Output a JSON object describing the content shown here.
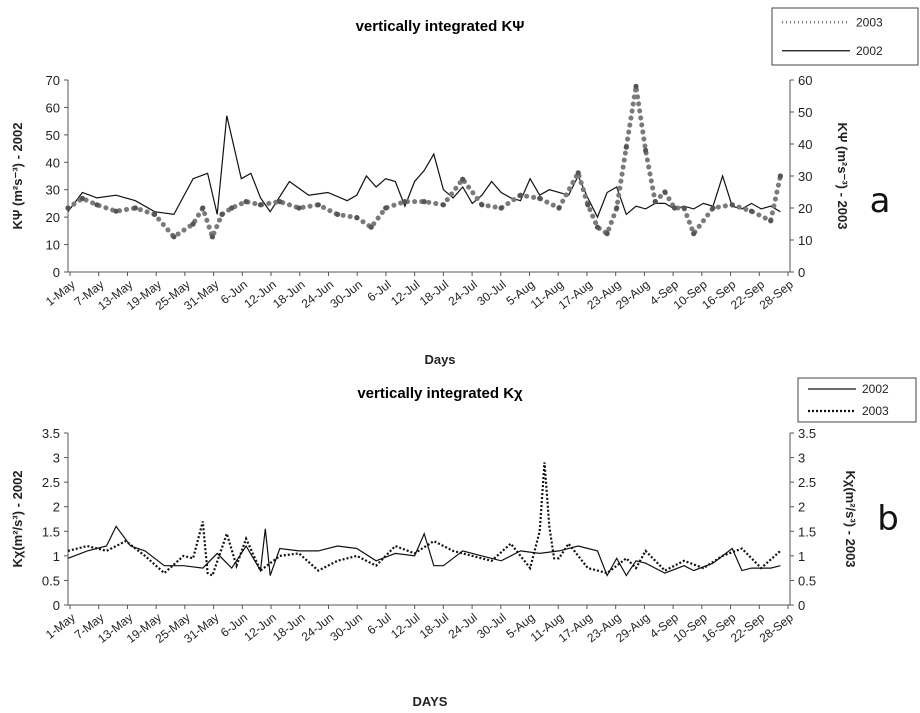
{
  "chart_data": [
    {
      "panel_label": "a",
      "type": "line",
      "title": "vertically integrated KΨ",
      "xlabel": "Days",
      "ylabel_left": "KΨ (m²s⁻³) - 2002",
      "ylabel_right": "KΨ (m²s⁻³) - 2003",
      "ylim_left": [
        0,
        70
      ],
      "ylim_right": [
        0,
        60
      ],
      "yticks_left": [
        "0",
        "10",
        "20",
        "30",
        "40",
        "50",
        "60",
        "70"
      ],
      "yticks_right": [
        "0",
        "10",
        "20",
        "30",
        "40",
        "50",
        "60"
      ],
      "x_tick_labels": [
        "1-May",
        "7-May",
        "13-May",
        "19-May",
        "25-May",
        "31-May",
        "6-Jun",
        "12-Jun",
        "18-Jun",
        "24-Jun",
        "30-Jun",
        "6-Jul",
        "12-Jul",
        "18-Jul",
        "24-Jul",
        "30-Jul",
        "5-Aug",
        "11-Aug",
        "17-Aug",
        "23-Aug",
        "29-Aug",
        "4-Sep",
        "10-Sep",
        "16-Sep",
        "22-Sep",
        "28-Sep"
      ],
      "legend_position": "top-right",
      "series": [
        {
          "name": "2002",
          "style": "solid",
          "axis": "left",
          "x": [
            0,
            3,
            6,
            10,
            14,
            18,
            22,
            26,
            29,
            31,
            33,
            36,
            38,
            40,
            42,
            46,
            50,
            54,
            58,
            60,
            62,
            64,
            66,
            68,
            70,
            72,
            74,
            76,
            78,
            80,
            82,
            84,
            86,
            88,
            90,
            92,
            94,
            96,
            98,
            100,
            104,
            106,
            108,
            110,
            112,
            114,
            116,
            118,
            120,
            122,
            124,
            126,
            128,
            130,
            132,
            134,
            136,
            138,
            140,
            142,
            144,
            146,
            148
          ],
          "y": [
            22,
            29,
            27,
            28,
            26,
            22,
            21,
            34,
            36,
            21,
            57,
            34,
            36,
            27,
            22,
            33,
            28,
            29,
            26,
            28,
            35,
            31,
            34,
            33,
            24,
            33,
            37,
            43,
            30,
            27,
            31,
            25,
            28,
            33,
            29,
            27,
            26,
            34,
            28,
            30,
            28,
            35,
            27,
            20,
            29,
            31,
            21,
            24,
            23,
            25,
            25,
            23,
            24,
            23,
            25,
            24,
            35,
            24,
            23,
            25,
            23,
            24,
            22
          ]
        },
        {
          "name": "2003",
          "style": "dotted",
          "axis": "right",
          "x": [
            0,
            3,
            6,
            10,
            14,
            18,
            22,
            26,
            28,
            30,
            32,
            34,
            37,
            40,
            44,
            48,
            52,
            56,
            60,
            63,
            66,
            70,
            74,
            78,
            82,
            86,
            90,
            94,
            98,
            102,
            106,
            108,
            110,
            112,
            114,
            116,
            118,
            120,
            122,
            124,
            126,
            128,
            130,
            134,
            138,
            142,
            146,
            148
          ],
          "y": [
            20,
            23,
            21,
            19,
            20,
            18,
            11,
            15,
            20,
            11,
            18,
            20,
            22,
            21,
            22,
            20,
            21,
            18,
            17,
            14,
            20,
            22,
            22,
            21,
            29,
            21,
            20,
            24,
            23,
            20,
            31,
            21,
            14,
            12,
            20,
            39,
            58,
            38,
            22,
            25,
            20,
            20,
            12,
            20,
            21,
            19,
            16,
            30
          ]
        }
      ]
    },
    {
      "panel_label": "b",
      "type": "line",
      "title": "vertically integrated Kχ",
      "xlabel": "DAYS",
      "ylabel_left": "Kχ(m²/s³) - 2002",
      "ylabel_right": "Kχ(m²/s³) - 2003",
      "ylim_left": [
        0,
        3.5
      ],
      "ylim_right": [
        0,
        3.5
      ],
      "yticks_left": [
        "0",
        "0.5",
        "1",
        "1.5",
        "2",
        "2.5",
        "3",
        "3.5"
      ],
      "yticks_right": [
        "0",
        "0.5",
        "1",
        "1.5",
        "2",
        "2.5",
        "3",
        "3.5"
      ],
      "x_tick_labels": [
        "1-May",
        "7-May",
        "13-May",
        "19-May",
        "25-May",
        "31-May",
        "6-Jun",
        "12-Jun",
        "18-Jun",
        "24-Jun",
        "30-Jun",
        "6-Jul",
        "12-Jul",
        "18-Jul",
        "24-Jul",
        "30-Jul",
        "5-Aug",
        "11-Aug",
        "17-Aug",
        "23-Aug",
        "29-Aug",
        "4-Sep",
        "10-Sep",
        "16-Sep",
        "22-Sep",
        "28-Sep"
      ],
      "legend_position": "top-right",
      "series": [
        {
          "name": "2002",
          "style": "solid",
          "axis": "left",
          "x": [
            0,
            4,
            8,
            10,
            13,
            16,
            20,
            24,
            28,
            31,
            34,
            37,
            40,
            41,
            42,
            44,
            48,
            52,
            56,
            60,
            64,
            68,
            72,
            74,
            76,
            78,
            80,
            82,
            86,
            90,
            94,
            98,
            102,
            106,
            110,
            112,
            114,
            116,
            118,
            120,
            124,
            128,
            130,
            134,
            138,
            140,
            142,
            146,
            148
          ],
          "y": [
            0.95,
            1.1,
            1.2,
            1.6,
            1.2,
            1.1,
            0.8,
            0.8,
            0.75,
            1.05,
            0.75,
            1.2,
            0.7,
            1.55,
            0.6,
            1.15,
            1.1,
            1.1,
            1.2,
            1.15,
            0.9,
            1.05,
            1.0,
            1.45,
            0.8,
            0.8,
            0.95,
            1.1,
            1.0,
            0.9,
            1.1,
            1.05,
            1.1,
            1.2,
            1.1,
            0.6,
            0.95,
            0.6,
            0.9,
            0.85,
            0.65,
            0.8,
            0.7,
            0.85,
            1.15,
            0.7,
            0.75,
            0.75,
            0.8
          ]
        },
        {
          "name": "2003",
          "style": "dotted",
          "axis": "right",
          "x": [
            0,
            4,
            8,
            12,
            16,
            20,
            24,
            26,
            28,
            29,
            30,
            33,
            35,
            37,
            40,
            44,
            48,
            52,
            56,
            60,
            64,
            68,
            72,
            76,
            80,
            84,
            88,
            92,
            96,
            98,
            99,
            100,
            101,
            102,
            104,
            108,
            112,
            116,
            118,
            120,
            124,
            128,
            132,
            136,
            140,
            144,
            148
          ],
          "y": [
            1.1,
            1.2,
            1.1,
            1.3,
            1.0,
            0.65,
            1.0,
            0.95,
            1.7,
            0.65,
            0.6,
            1.45,
            0.8,
            1.35,
            0.7,
            1.0,
            1.05,
            0.7,
            0.9,
            1.0,
            0.8,
            1.2,
            1.05,
            1.3,
            1.1,
            1.0,
            0.9,
            1.25,
            0.75,
            1.5,
            2.9,
            1.6,
            0.95,
            0.95,
            1.25,
            0.75,
            0.65,
            0.95,
            0.75,
            1.1,
            0.7,
            0.9,
            0.75,
            1.0,
            1.15,
            0.75,
            1.1
          ]
        }
      ]
    }
  ]
}
